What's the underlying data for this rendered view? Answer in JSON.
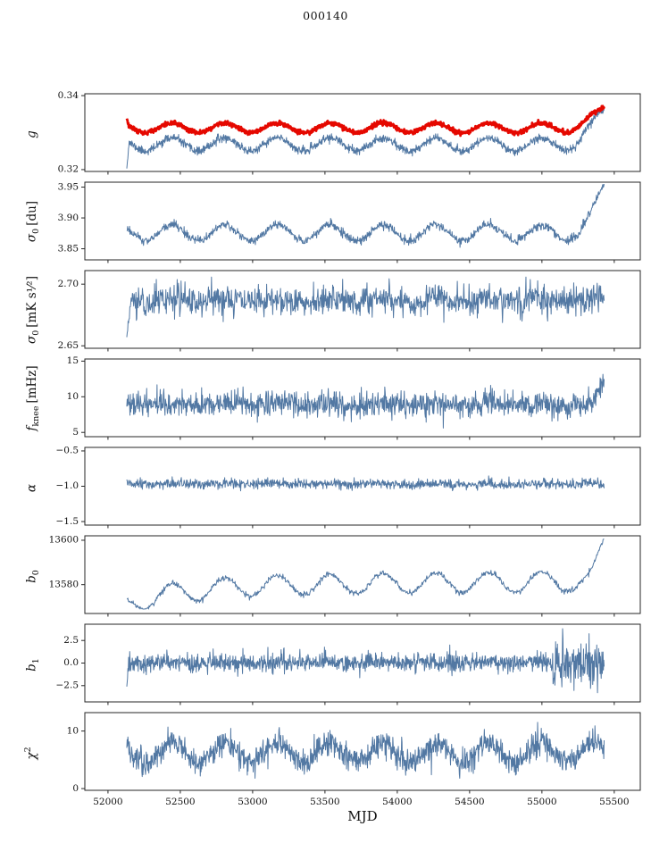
{
  "figure": {
    "title": "000140"
  },
  "chart_data": {
    "type": "line",
    "title": "000140",
    "xlabel": "MJD",
    "x_range": [
      52130,
      55430
    ],
    "xlim": [
      51840,
      55680
    ],
    "xticks": [
      {
        "v": 52000,
        "label": "52000"
      },
      {
        "v": 52500,
        "label": "52500"
      },
      {
        "v": 53000,
        "label": "53000"
      },
      {
        "v": 53500,
        "label": "53500"
      },
      {
        "v": 54000,
        "label": "54000"
      },
      {
        "v": 54500,
        "label": "54500"
      },
      {
        "v": 55000,
        "label": "55000"
      },
      {
        "v": 55500,
        "label": "55500"
      }
    ],
    "colors": {
      "line": "#5278a3",
      "highlight": "#e50800",
      "axes": "#262626",
      "background": "#ffffff"
    },
    "legend": "none",
    "grid": false,
    "panels": [
      {
        "key": "g",
        "ylabel": {
          "main": "g",
          "sub": "",
          "sup": "",
          "unit": ""
        },
        "ylim": [
          0.3195,
          0.3405
        ],
        "yticks": [
          {
            "v": 0.32,
            "label": "0.32"
          },
          {
            "v": 0.34,
            "label": "0.34"
          }
        ],
        "series": [
          {
            "seed": 11,
            "n": 1400,
            "base": 0.3268,
            "amp": 0.0018,
            "phase": 52350,
            "noise": 0.00055,
            "width": 1,
            "color": "#5278a3",
            "start": {
              "value": 0.3203,
              "pts": 7
            },
            "end_rise": {
              "from": 55180,
              "amp": 0.009,
              "power": 1.6
            },
            "clip": [
              0.3196,
              0.3404
            ]
          },
          {
            "seed": 12,
            "n": 1400,
            "base": 0.3313,
            "amp": 0.0013,
            "phase": 52350,
            "noise": 0.00028,
            "width": 2.8,
            "color": "#e50800",
            "start": {
              "value": 0.3338,
              "pts": 5
            },
            "end_rise": {
              "from": 55180,
              "amp": 0.005,
              "power": 1.6
            },
            "clip": [
              0.3196,
              0.3402
            ]
          }
        ]
      },
      {
        "key": "sigma0-du",
        "ylabel": {
          "main": "σ",
          "sub": "0",
          "sup": "",
          "unit": "[du]"
        },
        "ylim": [
          3.832,
          3.958
        ],
        "yticks": [
          {
            "v": 3.85,
            "label": "3.85"
          },
          {
            "v": 3.9,
            "label": "3.90"
          },
          {
            "v": 3.95,
            "label": "3.95"
          }
        ],
        "series": [
          {
            "seed": 21,
            "n": 1200,
            "base": 3.876,
            "amp": 0.013,
            "phase": 52350,
            "noise": 0.0035,
            "width": 1,
            "color": "#5278a3",
            "end_rise": {
              "from": 55230,
              "amp": 0.075,
              "power": 1.8
            },
            "clip": [
              3.836,
              3.955
            ]
          }
        ]
      },
      {
        "key": "sigma0-mk",
        "ylabel": {
          "main": "σ",
          "sub": "0",
          "sup": "",
          "unit": "[mK s¹⁄²]"
        },
        "ylim": [
          2.648,
          2.711
        ],
        "yticks": [
          {
            "v": 2.65,
            "label": "2.65"
          },
          {
            "v": 2.7,
            "label": "2.70"
          }
        ],
        "series": [
          {
            "seed": 31,
            "n": 1100,
            "base": 2.687,
            "amp": 0.0018,
            "phase": 52350,
            "noise": 0.006,
            "width": 1,
            "color": "#5278a3",
            "start": {
              "value": 2.657,
              "pts": 10
            },
            "clip": [
              2.652,
              2.708
            ]
          }
        ]
      },
      {
        "key": "f-knee",
        "ylabel": {
          "main": "f",
          "sub": "knee",
          "sup": "",
          "unit": "[mHz]"
        },
        "ylim": [
          4.4,
          15.3
        ],
        "yticks": [
          {
            "v": 5,
            "label": "5"
          },
          {
            "v": 10,
            "label": "10"
          },
          {
            "v": 15,
            "label": "15"
          }
        ],
        "series": [
          {
            "seed": 41,
            "n": 1200,
            "base": 9.0,
            "amp": 0.18,
            "phase": 52350,
            "noise": 0.85,
            "width": 1,
            "color": "#5278a3",
            "spike_prob": 0.002,
            "end_rise": {
              "from": 55330,
              "amp": 3.2,
              "power": 1.3
            },
            "clip": [
              5.6,
              14.6
            ]
          }
        ]
      },
      {
        "key": "alpha",
        "ylabel": {
          "main": "α",
          "sub": "",
          "sup": "",
          "unit": ""
        },
        "ylim": [
          -1.55,
          -0.45
        ],
        "yticks": [
          {
            "v": -1.5,
            "label": "−1.5"
          },
          {
            "v": -1.0,
            "label": "−1.0"
          },
          {
            "v": -0.5,
            "label": "−0.5"
          }
        ],
        "series": [
          {
            "seed": 51,
            "n": 1200,
            "base": -0.97,
            "amp": 0.008,
            "phase": 52350,
            "noise": 0.034,
            "width": 1,
            "color": "#5278a3",
            "clip": [
              -1.18,
              -0.78
            ]
          }
        ]
      },
      {
        "key": "b0",
        "ylabel": {
          "main": "b",
          "sub": "0",
          "sup": "",
          "unit": ""
        },
        "ylim": [
          13567,
          13602
        ],
        "yticks": [
          {
            "v": 13580,
            "label": "13580"
          },
          {
            "v": 13600,
            "label": "13600"
          }
        ],
        "series": [
          {
            "seed": 61,
            "n": 900,
            "base": 13579.5,
            "amp": 4.5,
            "phase": 52350,
            "noise": 0.65,
            "width": 1,
            "color": "#5278a3",
            "decay": {
              "amp": -8.5,
              "tau": 380
            },
            "trend": 2,
            "end_rise": {
              "from": 55320,
              "amp": 19,
              "power": 1.6
            },
            "clip": [
              13569,
              13600.5
            ]
          }
        ]
      },
      {
        "key": "b1",
        "ylabel": {
          "main": "b",
          "sub": "1",
          "sup": "",
          "unit": ""
        },
        "ylim": [
          -4.3,
          4.3
        ],
        "yticks": [
          {
            "v": -2.5,
            "label": "−2.5"
          },
          {
            "v": 0,
            "label": "0.0"
          },
          {
            "v": 2.5,
            "label": "2.5"
          }
        ],
        "series": [
          {
            "seed": 71,
            "n": 1300,
            "base": 0.05,
            "amp": 0.07,
            "phase": 52350,
            "noise": 0.52,
            "width": 1,
            "color": "#5278a3",
            "start": {
              "value": -2.6,
              "pts": 5
            },
            "late_noise": {
              "from": 55060,
              "factor": 2.3
            },
            "spike_prob": 0.003,
            "clip": [
              -3.8,
              3.8
            ]
          }
        ]
      },
      {
        "key": "chi2",
        "ylabel": {
          "main": "χ",
          "sub": "",
          "sup": "2",
          "unit": ""
        },
        "ylim": [
          -0.3,
          13.2
        ],
        "yticks": [
          {
            "v": 0,
            "label": "0"
          },
          {
            "v": 10,
            "label": "10"
          }
        ],
        "series": [
          {
            "seed": 81,
            "n": 1300,
            "base": 6.3,
            "amp": 1.7,
            "phase": 52350,
            "noise": 1.15,
            "width": 1,
            "color": "#5278a3",
            "spike_prob": 0.002,
            "clip": [
              1.8,
              12.6
            ]
          }
        ]
      }
    ]
  }
}
